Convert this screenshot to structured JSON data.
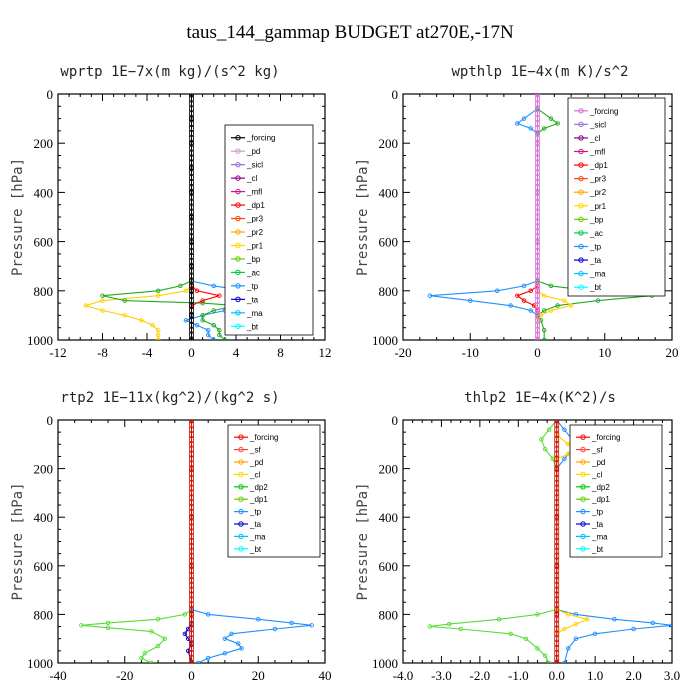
{
  "title": "taus_144_gammap  BUDGET at270E,-17N",
  "ylabel": "Pressure [hPa]",
  "chart_data": [
    {
      "type": "line",
      "title": "wprtp  1E−7x(m kg)/(s^2 kg)",
      "xlim": [
        -12,
        12
      ],
      "ylim": [
        1000,
        0
      ],
      "xticks": [
        -12,
        -8,
        -4,
        0,
        4,
        8,
        12
      ],
      "xtick_labels": [
        "-12",
        "-8",
        "-4",
        "0",
        "4",
        "8",
        "12"
      ],
      "yticks": [
        0,
        200,
        400,
        600,
        800,
        1000
      ],
      "legend": [
        "_forcing",
        "_pd",
        "_sicl",
        "_cl",
        "_mfl",
        "_dp1",
        "_pr3",
        "_pr2",
        "_pr1",
        "_bp",
        "_ac",
        "_tp",
        "_ta",
        "_ma",
        "_bt"
      ],
      "legend_colors": [
        "#000000",
        "#c8a2c8",
        "#9370db",
        "#8b008b",
        "#c71585",
        "#ff0000",
        "#ff4500",
        "#ffa500",
        "#ffd700",
        "#66cd00",
        "#00cc44",
        "#1e90ff",
        "#0000cd",
        "#00bfff",
        "#00ffff"
      ],
      "series": [
        {
          "color": "#ffd000",
          "points": [
            [
              0,
              780
            ],
            [
              -0.5,
              800
            ],
            [
              -3,
              820
            ],
            [
              -8,
              840
            ],
            [
              -9.5,
              860
            ],
            [
              -8,
              880
            ],
            [
              -6,
              900
            ],
            [
              -4.5,
              920
            ],
            [
              -3.5,
              940
            ],
            [
              -3,
              960
            ],
            [
              -3,
              980
            ],
            [
              -3,
              1000
            ]
          ]
        },
        {
          "color": "#1e90ff",
          "points": [
            [
              0,
              760
            ],
            [
              2,
              780
            ],
            [
              5,
              800
            ],
            [
              7,
              820
            ],
            [
              9,
              840
            ],
            [
              7,
              860
            ],
            [
              3,
              880
            ],
            [
              1,
              900
            ],
            [
              -0.5,
              920
            ],
            [
              0.5,
              940
            ],
            [
              1.5,
              960
            ],
            [
              1.5,
              980
            ],
            [
              2,
              1000
            ]
          ]
        },
        {
          "color": "#22aa22",
          "points": [
            [
              0,
              760
            ],
            [
              -1,
              780
            ],
            [
              -3,
              800
            ],
            [
              -8,
              820
            ],
            [
              -6,
              840
            ],
            [
              1,
              850
            ],
            [
              4,
              860
            ],
            [
              2,
              880
            ],
            [
              1,
              900
            ],
            [
              1,
              920
            ],
            [
              2,
              940
            ],
            [
              2.5,
              960
            ],
            [
              2.5,
              980
            ],
            [
              3,
              1000
            ]
          ]
        },
        {
          "color": "#ff0000",
          "points": [
            [
              0,
              780
            ],
            [
              0.5,
              800
            ],
            [
              2.5,
              820
            ],
            [
              1,
              840
            ],
            [
              0,
              860
            ]
          ]
        },
        {
          "color": "#000000",
          "points": [
            [
              0,
              0
            ],
            [
              0,
              100
            ],
            [
              0,
              200
            ],
            [
              0,
              300
            ],
            [
              0,
              400
            ],
            [
              0,
              500
            ],
            [
              0,
              600
            ],
            [
              0,
              700
            ],
            [
              0,
              800
            ],
            [
              0,
              900
            ],
            [
              0,
              1000
            ]
          ]
        }
      ]
    },
    {
      "type": "line",
      "title": "wpthlp  1E−4x(m K)/s^2",
      "xlim": [
        -20,
        20
      ],
      "ylim": [
        1000,
        0
      ],
      "xticks": [
        -20,
        -10,
        0,
        10,
        20
      ],
      "xtick_labels": [
        "-20",
        "-10",
        "0",
        "10",
        "20"
      ],
      "yticks": [
        0,
        200,
        400,
        600,
        800,
        1000
      ],
      "legend": [
        "_forcing",
        "_sicl",
        "_cl",
        "_mfl",
        "_dp1",
        "_pr3",
        "_pr2",
        "_pr1",
        "_bp",
        "_ac",
        "_tp",
        "_ta",
        "_ma",
        "_bt"
      ],
      "legend_colors": [
        "#da70d6",
        "#9370db",
        "#8b008b",
        "#c71585",
        "#ff0000",
        "#ff4500",
        "#ffa500",
        "#ffd700",
        "#66cd00",
        "#00cc44",
        "#1e90ff",
        "#0000cd",
        "#00bfff",
        "#00ffff"
      ],
      "series": [
        {
          "color": "#1e90ff",
          "points": [
            [
              0,
              60
            ],
            [
              -2,
              100
            ],
            [
              -3,
              120
            ],
            [
              -1,
              140
            ],
            [
              0,
              160
            ],
            [
              0,
              760
            ],
            [
              -2,
              780
            ],
            [
              -6,
              800
            ],
            [
              -16,
              820
            ],
            [
              -10,
              840
            ],
            [
              -4,
              860
            ],
            [
              -1,
              880
            ],
            [
              0,
              900
            ],
            [
              0,
              1000
            ]
          ]
        },
        {
          "color": "#22aa22",
          "points": [
            [
              0,
              60
            ],
            [
              2,
              100
            ],
            [
              3,
              120
            ],
            [
              1,
              140
            ],
            [
              0,
              160
            ],
            [
              0,
              760
            ],
            [
              2,
              780
            ],
            [
              8,
              800
            ],
            [
              17,
              820
            ],
            [
              9,
              840
            ],
            [
              3,
              860
            ],
            [
              1,
              880
            ],
            [
              0,
              900
            ],
            [
              0.5,
              920
            ],
            [
              1,
              960
            ],
            [
              1,
              1000
            ]
          ]
        },
        {
          "color": "#ffd000",
          "points": [
            [
              0,
              800
            ],
            [
              1,
              820
            ],
            [
              4,
              840
            ],
            [
              5,
              860
            ],
            [
              2,
              880
            ],
            [
              0.5,
              900
            ],
            [
              0,
              920
            ],
            [
              0,
              1000
            ]
          ]
        },
        {
          "color": "#ff0000",
          "points": [
            [
              0,
              780
            ],
            [
              -1,
              800
            ],
            [
              -3,
              820
            ],
            [
              -2,
              840
            ],
            [
              -0.5,
              860
            ],
            [
              0,
              880
            ]
          ]
        },
        {
          "color": "#da70d6",
          "points": [
            [
              0,
              0
            ],
            [
              0,
              200
            ],
            [
              0,
              400
            ],
            [
              0,
              600
            ],
            [
              0,
              800
            ],
            [
              0,
              1000
            ]
          ]
        }
      ]
    },
    {
      "type": "line",
      "title": "rtp2  1E−11x(kg^2)/(kg^2 s)",
      "xlim": [
        -40,
        40
      ],
      "ylim": [
        1000,
        0
      ],
      "xticks": [
        -40,
        -20,
        0,
        20,
        40
      ],
      "xtick_labels": [
        "-40",
        "-20",
        "0",
        "20",
        "40"
      ],
      "yticks": [
        0,
        200,
        400,
        600,
        800,
        1000
      ],
      "legend": [
        "_forcing",
        "_sf",
        "_pd",
        "_cl",
        "_dp2",
        "_dp1",
        "_tp",
        "_ta",
        "_ma",
        "_bt"
      ],
      "legend_colors": [
        "#ff0000",
        "#ff4040",
        "#ffa500",
        "#ffd700",
        "#00cc00",
        "#66cd00",
        "#1e90ff",
        "#0000cd",
        "#00bfff",
        "#00ffff"
      ],
      "series": [
        {
          "color": "#55dd33",
          "points": [
            [
              0,
              780
            ],
            [
              -2,
              800
            ],
            [
              -10,
              820
            ],
            [
              -25,
              835
            ],
            [
              -33,
              845
            ],
            [
              -25,
              855
            ],
            [
              -12,
              870
            ],
            [
              -8,
              900
            ],
            [
              -10,
              930
            ],
            [
              -14,
              960
            ],
            [
              -15,
              980
            ],
            [
              -12,
              1000
            ]
          ]
        },
        {
          "color": "#1e90ff",
          "points": [
            [
              0,
              780
            ],
            [
              5,
              800
            ],
            [
              20,
              820
            ],
            [
              30,
              835
            ],
            [
              36,
              845
            ],
            [
              25,
              860
            ],
            [
              12,
              880
            ],
            [
              10,
              900
            ],
            [
              14,
              920
            ],
            [
              15,
              940
            ],
            [
              10,
              960
            ],
            [
              5,
              980
            ],
            [
              2,
              1000
            ]
          ]
        },
        {
          "color": "#0000cd",
          "points": [
            [
              0,
              840
            ],
            [
              -1,
              860
            ],
            [
              -2,
              880
            ],
            [
              -1,
              900
            ],
            [
              0,
              920
            ],
            [
              -1,
              950
            ],
            [
              0,
              1000
            ]
          ]
        },
        {
          "color": "#cc1100",
          "points": [
            [
              0,
              0
            ],
            [
              0,
              200
            ],
            [
              0,
              400
            ],
            [
              0,
              600
            ],
            [
              0,
              800
            ],
            [
              0,
              1000
            ]
          ]
        }
      ]
    },
    {
      "type": "line",
      "title": "thlp2  1E−4x(K^2)/s",
      "xlim": [
        -4.0,
        3.0
      ],
      "ylim": [
        1000,
        0
      ],
      "xticks": [
        -4.0,
        -3.0,
        -2.0,
        -1.0,
        0.0,
        1.0,
        2.0,
        3.0
      ],
      "xtick_labels": [
        "-4.0",
        "-3.0",
        "-2.0",
        "-1.0",
        "0.0",
        "1.0",
        "2.0",
        "3.0"
      ],
      "yticks": [
        0,
        200,
        400,
        600,
        800,
        1000
      ],
      "legend": [
        "_forcing",
        "_sf",
        "_pd",
        "_cl",
        "_dp2",
        "_dp1",
        "_tp",
        "_ta",
        "_ma",
        "_bt"
      ],
      "legend_colors": [
        "#ff0000",
        "#ff4040",
        "#ffa500",
        "#ffd700",
        "#00cc00",
        "#66cd00",
        "#1e90ff",
        "#0000cd",
        "#00bfff",
        "#00ffff"
      ],
      "series": [
        {
          "color": "#55dd33",
          "points": [
            [
              0,
              0
            ],
            [
              -0.2,
              40
            ],
            [
              -0.4,
              80
            ],
            [
              -0.3,
              120
            ],
            [
              -0.1,
              160
            ],
            [
              0,
              200
            ],
            [
              0,
              780
            ],
            [
              -0.5,
              800
            ],
            [
              -1.5,
              820
            ],
            [
              -2.8,
              840
            ],
            [
              -3.3,
              850
            ],
            [
              -2.5,
              860
            ],
            [
              -1.2,
              880
            ],
            [
              -0.8,
              900
            ],
            [
              -0.5,
              940
            ],
            [
              -0.3,
              970
            ],
            [
              -0.2,
              1000
            ]
          ]
        },
        {
          "color": "#1e90ff",
          "points": [
            [
              0,
              0
            ],
            [
              0.2,
              40
            ],
            [
              0.4,
              80
            ],
            [
              0.5,
              110
            ],
            [
              0.3,
              140
            ],
            [
              0.2,
              160
            ],
            [
              0,
              200
            ],
            [
              0,
              780
            ],
            [
              0.5,
              800
            ],
            [
              1.5,
              820
            ],
            [
              2.5,
              835
            ],
            [
              3.0,
              845
            ],
            [
              2,
              860
            ],
            [
              1,
              880
            ],
            [
              0.5,
              900
            ],
            [
              0.3,
              940
            ],
            [
              0.2,
              1000
            ]
          ]
        },
        {
          "color": "#ffd000",
          "points": [
            [
              0,
              60
            ],
            [
              0.3,
              100
            ],
            [
              0.6,
              120
            ],
            [
              0.3,
              140
            ],
            [
              0,
              160
            ],
            [
              0,
              780
            ],
            [
              0.3,
              800
            ],
            [
              0.8,
              820
            ],
            [
              0.5,
              840
            ],
            [
              0.2,
              860
            ],
            [
              0,
              880
            ]
          ]
        },
        {
          "color": "#cc1100",
          "points": [
            [
              0,
              0
            ],
            [
              0,
              200
            ],
            [
              0,
              400
            ],
            [
              0,
              600
            ],
            [
              0,
              800
            ],
            [
              0,
              1000
            ]
          ]
        }
      ]
    }
  ]
}
